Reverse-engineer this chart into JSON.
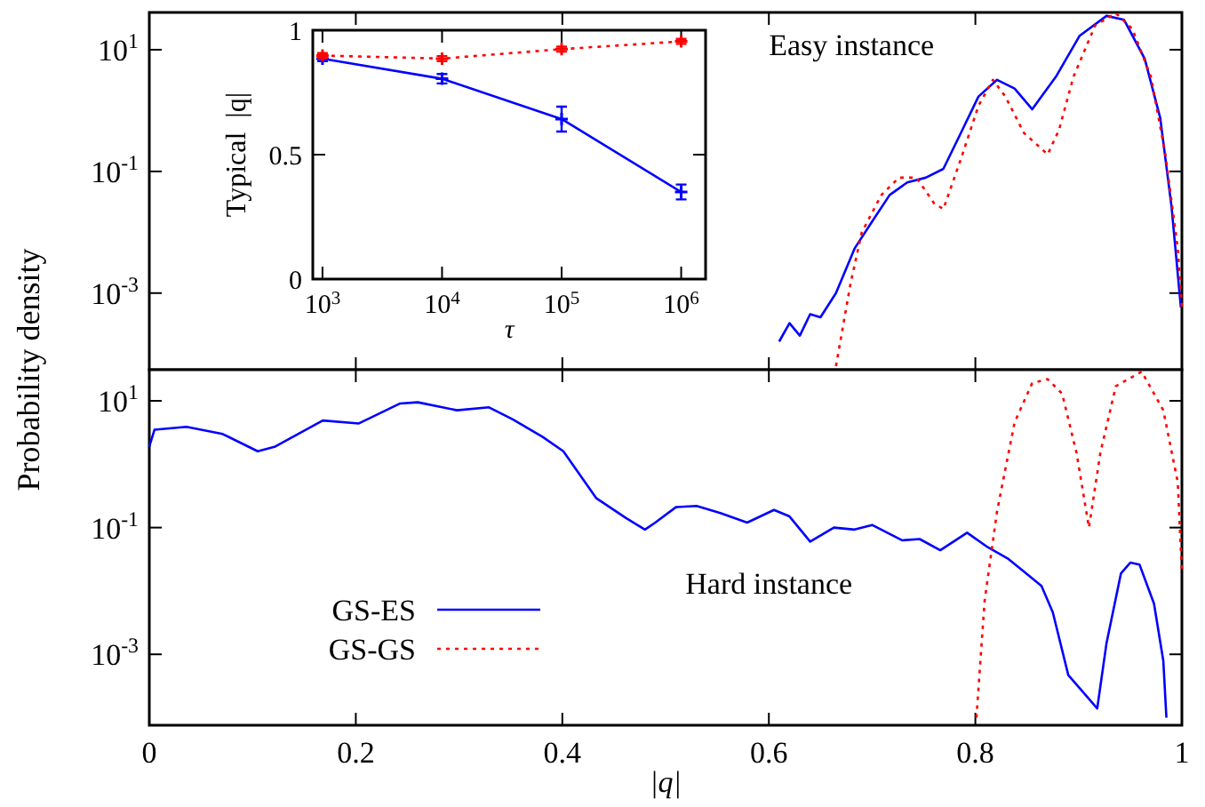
{
  "chart_data": [
    {
      "type": "line",
      "log": "y",
      "xlim": [
        0,
        1
      ],
      "xticks": [
        0,
        0.2,
        0.4,
        0.6,
        0.8,
        1
      ],
      "ylim": [
        5.5e-05,
        41
      ],
      "yticks": [
        {
          "value": 10,
          "label": "10$^{1}$"
        },
        {
          "value": 0.1,
          "label": "10$^{-1}$"
        },
        {
          "value": 0.001,
          "label": "10$^{-3}$"
        }
      ],
      "tick_labels": "y",
      "annotations": [
        "Easy instance"
      ],
      "series": [
        {
          "color": "#0000ff",
          "line_style": "solid",
          "x": [
            0.61,
            0.62,
            0.63,
            0.64,
            0.65,
            0.665,
            0.683,
            0.7,
            0.717,
            0.734,
            0.752,
            0.769,
            0.786,
            0.803,
            0.821,
            0.838,
            0.855,
            0.878,
            0.901,
            0.927,
            0.944,
            0.964,
            0.979,
            0.99,
            0.999
          ],
          "values": [
            0.00016,
            0.00032,
            0.0002,
            0.00045,
            0.0004,
            0.001,
            0.0054,
            0.015,
            0.041,
            0.066,
            0.079,
            0.11,
            0.43,
            1.7,
            3.2,
            2.3,
            1.05,
            3.6,
            17,
            36,
            31,
            7.1,
            0.76,
            0.026,
            0.00058
          ]
        },
        {
          "color": "#ff0000",
          "line_style": "dotted",
          "x": [
            0.665,
            0.679,
            0.69,
            0.709,
            0.726,
            0.743,
            0.76,
            0.769,
            0.786,
            0.803,
            0.817,
            0.829,
            0.847,
            0.87,
            0.881,
            0.895,
            0.916,
            0.936,
            0.952,
            0.97,
            0.984,
            0.996,
            1
          ],
          "values": [
            6.3e-05,
            0.0014,
            0.01,
            0.041,
            0.079,
            0.079,
            0.03,
            0.024,
            0.16,
            1.2,
            3.2,
            1.7,
            0.43,
            0.19,
            0.48,
            3.6,
            25,
            40,
            22,
            3.6,
            0.19,
            0.0054,
            0.00058
          ]
        }
      ]
    },
    {
      "type": "line",
      "log": "y",
      "xlabel": "|q|",
      "ylabel": "Probability density",
      "xlim": [
        0,
        1
      ],
      "xticks": [
        0,
        0.2,
        0.4,
        0.6,
        0.8,
        1
      ],
      "ylim": [
        7.6e-05,
        31
      ],
      "yticks": [
        {
          "value": 10,
          "label": "10$^{1}$"
        },
        {
          "value": 0.1,
          "label": "10$^{-1}$"
        },
        {
          "value": 0.001,
          "label": "10$^{-3}$"
        }
      ],
      "legend": "bottom left",
      "annotations": [
        "Hard instance"
      ],
      "series": [
        {
          "name": "GS-ES",
          "color": "#0000ff",
          "line_style": "solid",
          "x": [
            0,
            0.005,
            0.036,
            0.071,
            0.105,
            0.122,
            0.168,
            0.203,
            0.243,
            0.26,
            0.298,
            0.329,
            0.352,
            0.381,
            0.401,
            0.433,
            0.462,
            0.48,
            0.49,
            0.51,
            0.53,
            0.553,
            0.579,
            0.605,
            0.62,
            0.64,
            0.663,
            0.683,
            0.7,
            0.729,
            0.746,
            0.766,
            0.792,
            0.812,
            0.832,
            0.849,
            0.864,
            0.875,
            0.89,
            0.918,
            0.927,
            0.941,
            0.95,
            0.959,
            0.973,
            0.982,
            0.985
          ],
          "values": [
            1.9,
            3.5,
            3.9,
            3.0,
            1.6,
            1.9,
            4.9,
            4.4,
            9.1,
            9.5,
            7.1,
            7.9,
            5.1,
            2.7,
            1.6,
            0.29,
            0.14,
            0.093,
            0.12,
            0.21,
            0.22,
            0.17,
            0.12,
            0.19,
            0.15,
            0.06,
            0.1,
            0.093,
            0.11,
            0.063,
            0.066,
            0.044,
            0.083,
            0.049,
            0.032,
            0.019,
            0.012,
            0.0046,
            0.00047,
            0.00014,
            0.0015,
            0.019,
            0.028,
            0.026,
            0.0063,
            0.00079,
            0.0001
          ]
        },
        {
          "name": "GS-GS",
          "color": "#ff0000",
          "line_style": "dotted",
          "x": [
            0.801,
            0.809,
            0.821,
            0.838,
            0.855,
            0.87,
            0.884,
            0.898,
            0.91,
            0.921,
            0.936,
            0.961,
            0.982,
            0.996,
            1
          ],
          "values": [
            0.0001,
            0.0071,
            0.18,
            4.6,
            19,
            22,
            13,
            1.5,
            0.1,
            1.5,
            17,
            29,
            7.1,
            0.52,
            0.02
          ]
        }
      ]
    },
    {
      "type": "line",
      "log": "x",
      "xlabel": "τ",
      "ylabel": "Typical  |q|",
      "xlim": [
        830,
        1600000
      ],
      "xticks": [
        {
          "value": 1000,
          "label": "10$^{3}$"
        },
        {
          "value": 10000,
          "label": "10$^{4}$"
        },
        {
          "value": 100000,
          "label": "10$^{5}$"
        },
        {
          "value": 1000000,
          "label": "10$^{6}$"
        }
      ],
      "ylim": [
        0,
        1
      ],
      "yticks": [
        0,
        0.5,
        1
      ],
      "series": [
        {
          "color": "#0000ff",
          "line_style": "solid",
          "marker": "cross",
          "x": [
            1000,
            10000,
            100000,
            1000000
          ],
          "values": [
            0.886,
            0.805,
            0.643,
            0.35
          ],
          "errors": [
            0.01,
            0.019,
            0.05,
            0.03
          ]
        },
        {
          "color": "#ff0000",
          "line_style": "dotted",
          "marker": "cross",
          "x": [
            1000,
            10000,
            100000,
            1000000
          ],
          "values": [
            0.898,
            0.886,
            0.924,
            0.955
          ],
          "errors": [
            0.01,
            0.01,
            0.01,
            0.01
          ]
        }
      ]
    }
  ]
}
